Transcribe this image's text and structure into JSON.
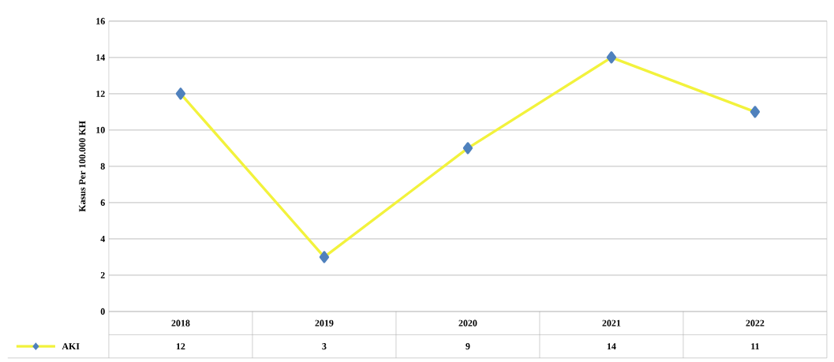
{
  "chart_data": {
    "type": "line",
    "ylabel": "Kasus Per 100.000 KH",
    "categories": [
      "2018",
      "2019",
      "2020",
      "2021",
      "2022"
    ],
    "series": [
      {
        "name": "AKI",
        "color": "#f2f23c",
        "values": [
          12,
          3,
          9,
          14,
          11
        ]
      }
    ],
    "ylim": [
      0,
      16
    ],
    "yticks": [
      0,
      2,
      4,
      6,
      8,
      10,
      12,
      14,
      16
    ],
    "grid": "y",
    "marker": "diamond",
    "data_labels": true,
    "legend": "bottom"
  }
}
